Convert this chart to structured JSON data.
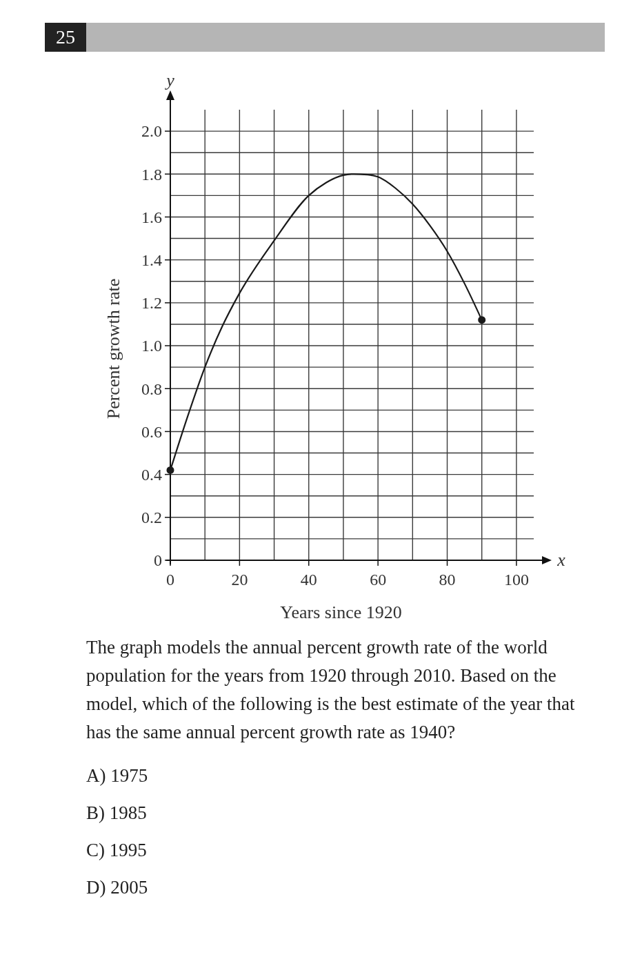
{
  "chart_data": {
    "type": "line",
    "xlabel": "Years since 1920",
    "ylabel": "Percent growth rate",
    "x": [
      0,
      5,
      10,
      15,
      20,
      30,
      40,
      45,
      50,
      53,
      57,
      60,
      65,
      70,
      75,
      80,
      85,
      90
    ],
    "series": [
      {
        "color": "#1a1a1a",
        "values": [
          0.42,
          0.67,
          0.9,
          1.09,
          1.245,
          1.49,
          1.7,
          1.76,
          1.795,
          1.8,
          1.797,
          1.787,
          1.735,
          1.66,
          1.56,
          1.44,
          1.29,
          1.12
        ]
      },
      {
        "type": "scatter",
        "color": "#1a1a1a",
        "x": [
          0,
          90
        ],
        "values": [
          0.42,
          1.12
        ]
      }
    ],
    "xlim": [
      0,
      105
    ],
    "ylim": [
      0,
      2.1
    ],
    "xticks": [
      0,
      {
        "value": 10,
        "label": null
      },
      20,
      {
        "value": 30,
        "label": null
      },
      40,
      {
        "value": 50,
        "label": null
      },
      60,
      {
        "value": 70,
        "label": null
      },
      80,
      {
        "value": 90,
        "label": null
      },
      100
    ],
    "yticks": [
      0,
      {
        "value": 0.1,
        "label": null
      },
      0.2,
      {
        "value": 0.3,
        "label": null
      },
      0.4,
      {
        "value": 0.5,
        "label": null
      },
      0.6,
      {
        "value": 0.7,
        "label": null
      },
      0.8,
      {
        "value": 0.9,
        "label": null
      },
      {
        "value": 1,
        "label": "1.0"
      },
      {
        "value": 1.1,
        "label": null
      },
      1.2,
      {
        "value": 1.3,
        "label": null
      },
      1.4,
      {
        "value": 1.5,
        "label": null
      },
      1.6,
      {
        "value": 1.7,
        "label": null
      },
      1.8,
      {
        "value": 1.9,
        "label": null
      },
      {
        "value": 2,
        "label": "2.0"
      }
    ],
    "grid": true,
    "annotations": [
      "25",
      "The graph models the annual percent growth rate of the world population for the years from 1920 through 2010. Based on the model, which of the following is the best estimate of the year that has the same annual percent growth rate as 1940?",
      "A) 1975",
      "B) 1985",
      "C) 1995",
      "D) 2005",
      "x",
      "y"
    ]
  }
}
